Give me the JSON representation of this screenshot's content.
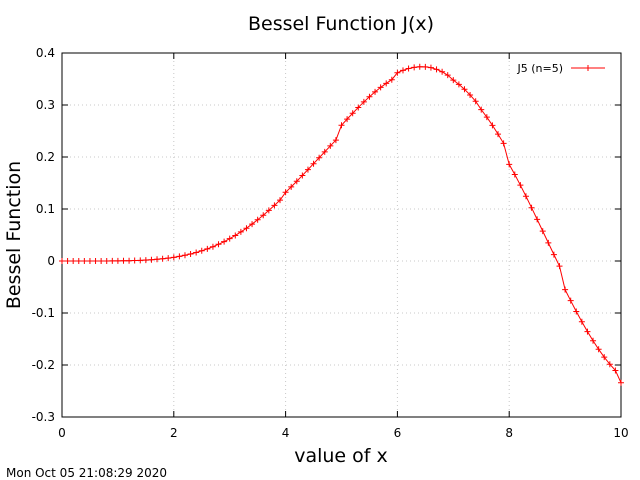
{
  "chart_data": {
    "type": "line",
    "title": "Bessel Function J(x)",
    "xlabel": "value of x",
    "ylabel": "Bessel Function",
    "xlim": [
      0,
      10
    ],
    "ylim": [
      -0.3,
      0.4
    ],
    "xticks": [
      0,
      2,
      4,
      6,
      8,
      10
    ],
    "xtick_labels": [
      "0",
      "2",
      "4",
      "6",
      "8",
      "10"
    ],
    "yticks": [
      -0.3,
      -0.2,
      -0.1,
      0,
      0.1,
      0.2,
      0.3,
      0.4
    ],
    "ytick_labels": [
      "-0.3",
      "-0.2",
      "-0.1",
      "0",
      "0.1",
      "0.2",
      "0.3",
      "0.4"
    ],
    "grid": true,
    "legend_position": "top-right",
    "marker": "plus",
    "series": [
      {
        "name": "J5 (n=5)",
        "color": "#ff0000",
        "x": [
          0,
          0.1,
          0.2,
          0.3,
          0.4,
          0.5,
          0.6,
          0.7,
          0.8,
          0.9,
          1.0,
          1.1,
          1.2,
          1.3,
          1.4,
          1.5,
          1.6,
          1.7,
          1.8,
          1.9,
          2.0,
          2.1,
          2.2,
          2.3,
          2.4,
          2.5,
          2.6,
          2.7,
          2.8,
          2.9,
          3.0,
          3.1,
          3.2,
          3.3,
          3.4,
          3.5,
          3.6,
          3.7,
          3.8,
          3.9,
          4.0,
          4.1,
          4.2,
          4.3,
          4.4,
          4.5,
          4.6,
          4.7,
          4.8,
          4.9,
          5.0,
          5.1,
          5.2,
          5.3,
          5.4,
          5.5,
          5.6,
          5.7,
          5.8,
          5.9,
          6.0,
          6.1,
          6.2,
          6.3,
          6.4,
          6.5,
          6.6,
          6.7,
          6.8,
          6.9,
          7.0,
          7.1,
          7.2,
          7.3,
          7.4,
          7.5,
          7.6,
          7.7,
          7.8,
          7.9,
          8.0,
          8.1,
          8.2,
          8.3,
          8.4,
          8.5,
          8.6,
          8.7,
          8.8,
          8.9,
          9.0,
          9.1,
          9.2,
          9.3,
          9.4,
          9.5,
          9.6,
          9.7,
          9.8,
          9.9,
          10.0
        ],
        "y": [
          0,
          0,
          0,
          0,
          0,
          0,
          0,
          0,
          0.0001,
          0.0002,
          0.0002,
          0.0004,
          0.0006,
          0.0009,
          0.0012,
          0.0018,
          0.0024,
          0.0033,
          0.0043,
          0.0056,
          0.007,
          0.0089,
          0.011,
          0.0135,
          0.0164,
          0.0196,
          0.0233,
          0.0275,
          0.0321,
          0.0372,
          0.043,
          0.0491,
          0.0559,
          0.0631,
          0.071,
          0.0793,
          0.088,
          0.0973,
          0.107,
          0.1171,
          0.1321,
          0.1426,
          0.1534,
          0.1645,
          0.1757,
          0.1871,
          0.1985,
          0.2099,
          0.2213,
          0.2325,
          0.2611,
          0.2728,
          0.2842,
          0.2953,
          0.3059,
          0.3159,
          0.3253,
          0.3339,
          0.3417,
          0.3486,
          0.3621,
          0.3667,
          0.3701,
          0.3724,
          0.3736,
          0.3734,
          0.3718,
          0.3686,
          0.3639,
          0.3575,
          0.3479,
          0.3397,
          0.3302,
          0.3193,
          0.3071,
          0.2911,
          0.2766,
          0.2609,
          0.244,
          0.2261,
          0.1858,
          0.1663,
          0.1458,
          0.1245,
          0.1025,
          0.0801,
          0.0575,
          0.0348,
          0.0123,
          -0.0099,
          -0.0551,
          -0.0763,
          -0.0971,
          -0.1169,
          -0.1357,
          -0.1534,
          -0.1698,
          -0.1849,
          -0.1985,
          -0.2105,
          -0.2341
        ]
      }
    ]
  },
  "footer": {
    "timestamp": "Mon Oct 05 21:08:29 2020"
  }
}
